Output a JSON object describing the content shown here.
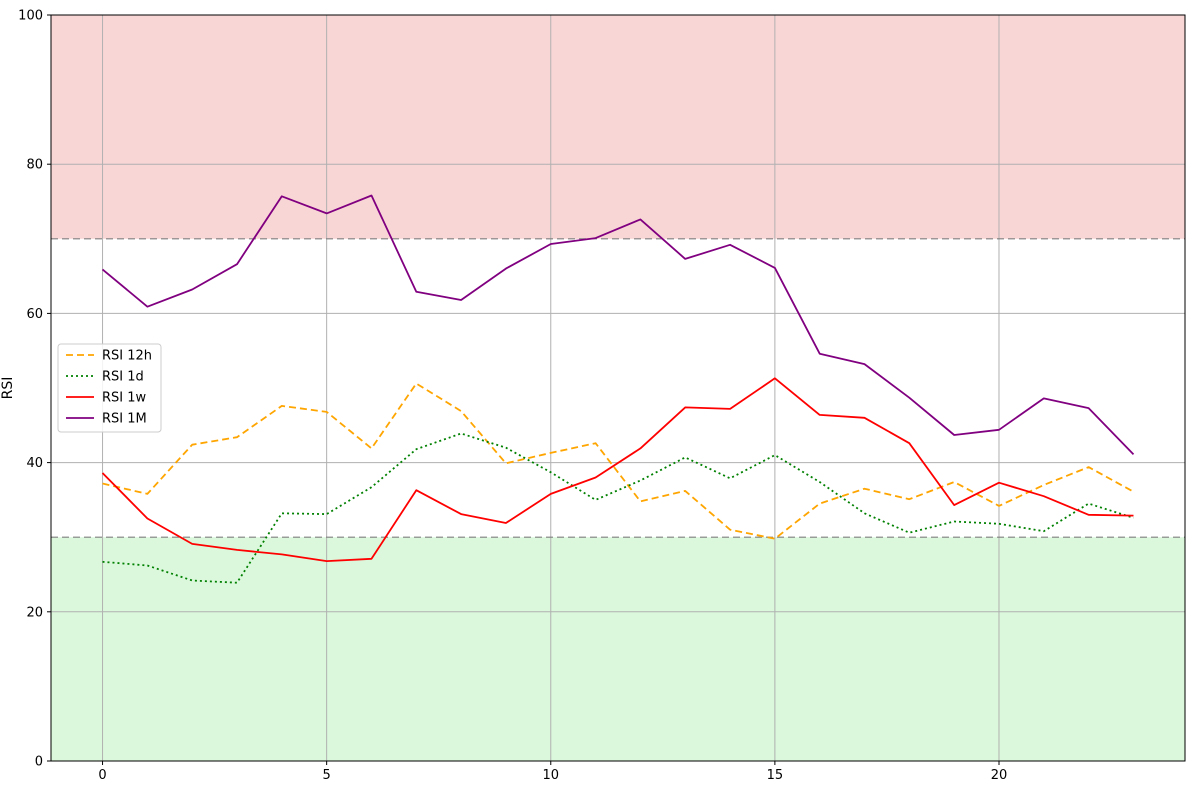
{
  "chart_data": {
    "type": "line",
    "title": "",
    "xlabel": "",
    "ylabel": "RSI",
    "xlim": [
      -1.15,
      24.15
    ],
    "ylim": [
      0,
      100
    ],
    "xticks": [
      0,
      5,
      10,
      15,
      20
    ],
    "yticks": [
      0,
      20,
      40,
      60,
      80,
      100
    ],
    "grid": true,
    "legend_position": "center-left",
    "bands": [
      {
        "y0": 70,
        "y1": 100,
        "color": "#f9d6d6"
      },
      {
        "y0": 0,
        "y1": 30,
        "color": "#dbf8dc"
      }
    ],
    "reference_lines": [
      {
        "y": 70,
        "color": "#808080",
        "style": "dashed"
      },
      {
        "y": 30,
        "color": "#808080",
        "style": "dashed"
      }
    ],
    "x": [
      0,
      1,
      2,
      3,
      4,
      5,
      6,
      7,
      8,
      9,
      10,
      11,
      12,
      13,
      14,
      15,
      16,
      17,
      18,
      19,
      20,
      21,
      22,
      23
    ],
    "series": [
      {
        "name": "RSI 12h",
        "color": "#ffa500",
        "style": "dashed",
        "values": [
          37.2,
          35.8,
          42.4,
          43.4,
          47.6,
          46.8,
          41.9,
          50.6,
          46.9,
          39.9,
          41.3,
          42.6,
          34.8,
          36.2,
          31.0,
          29.8,
          34.5,
          36.5,
          35.1,
          37.4,
          34.2,
          37.0,
          39.4,
          36.1
        ]
      },
      {
        "name": "RSI 1d",
        "color": "#008000",
        "style": "dotted",
        "values": [
          26.7,
          26.2,
          24.2,
          23.9,
          33.2,
          33.1,
          36.7,
          41.8,
          43.9,
          42.0,
          38.7,
          35.0,
          37.6,
          40.7,
          37.9,
          41.0,
          37.4,
          33.2,
          30.6,
          32.1,
          31.8,
          30.8,
          34.5,
          32.6
        ]
      },
      {
        "name": "RSI 1w",
        "color": "#ff0000",
        "style": "solid",
        "values": [
          38.6,
          32.5,
          29.1,
          28.3,
          27.7,
          26.8,
          27.1,
          36.3,
          33.1,
          31.9,
          35.8,
          38.0,
          41.9,
          47.4,
          47.2,
          51.3,
          46.4,
          46.0,
          42.6,
          34.3,
          37.3,
          35.5,
          33.0,
          32.9
        ]
      },
      {
        "name": "RSI 1M",
        "color": "#800080",
        "style": "solid",
        "values": [
          65.9,
          60.9,
          63.2,
          66.6,
          75.7,
          73.4,
          75.8,
          62.9,
          61.8,
          66.0,
          69.3,
          70.1,
          72.6,
          67.3,
          69.2,
          66.1,
          54.6,
          53.2,
          48.7,
          43.7,
          44.4,
          48.6,
          47.3,
          41.1
        ]
      }
    ]
  }
}
